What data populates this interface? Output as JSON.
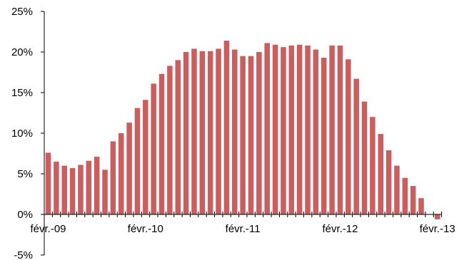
{
  "chart_data": {
    "type": "bar",
    "title": "",
    "xlabel": "",
    "ylabel": "",
    "ylim": [
      -5,
      25
    ],
    "y_ticks": [
      -5,
      0,
      5,
      10,
      15,
      20,
      25
    ],
    "y_tick_labels": [
      "-5%",
      "0%",
      "5%",
      "10%",
      "15%",
      "20%",
      "25%"
    ],
    "x_tick_labels": [
      {
        "index": 0,
        "label": "févr.-09"
      },
      {
        "index": 12,
        "label": "févr.-10"
      },
      {
        "index": 24,
        "label": "févr.-11"
      },
      {
        "index": 36,
        "label": "févr.-12"
      },
      {
        "index": 48,
        "label": "févr.-13"
      }
    ],
    "bar_color": "#cd5c5c",
    "grid": false,
    "legend": "none",
    "values": [
      7.6,
      6.5,
      6.0,
      5.7,
      6.1,
      6.6,
      7.1,
      5.5,
      9.0,
      10.0,
      11.3,
      13.1,
      14.1,
      16.1,
      17.3,
      18.3,
      19.0,
      20.0,
      20.4,
      20.1,
      20.1,
      20.4,
      21.4,
      20.3,
      19.5,
      19.5,
      20.0,
      21.1,
      20.9,
      20.6,
      20.8,
      20.9,
      20.8,
      20.3,
      19.3,
      20.8,
      20.8,
      19.1,
      16.7,
      13.9,
      12.0,
      9.9,
      7.9,
      6.0,
      4.5,
      3.5,
      2.0,
      0.0,
      -0.6
    ]
  }
}
